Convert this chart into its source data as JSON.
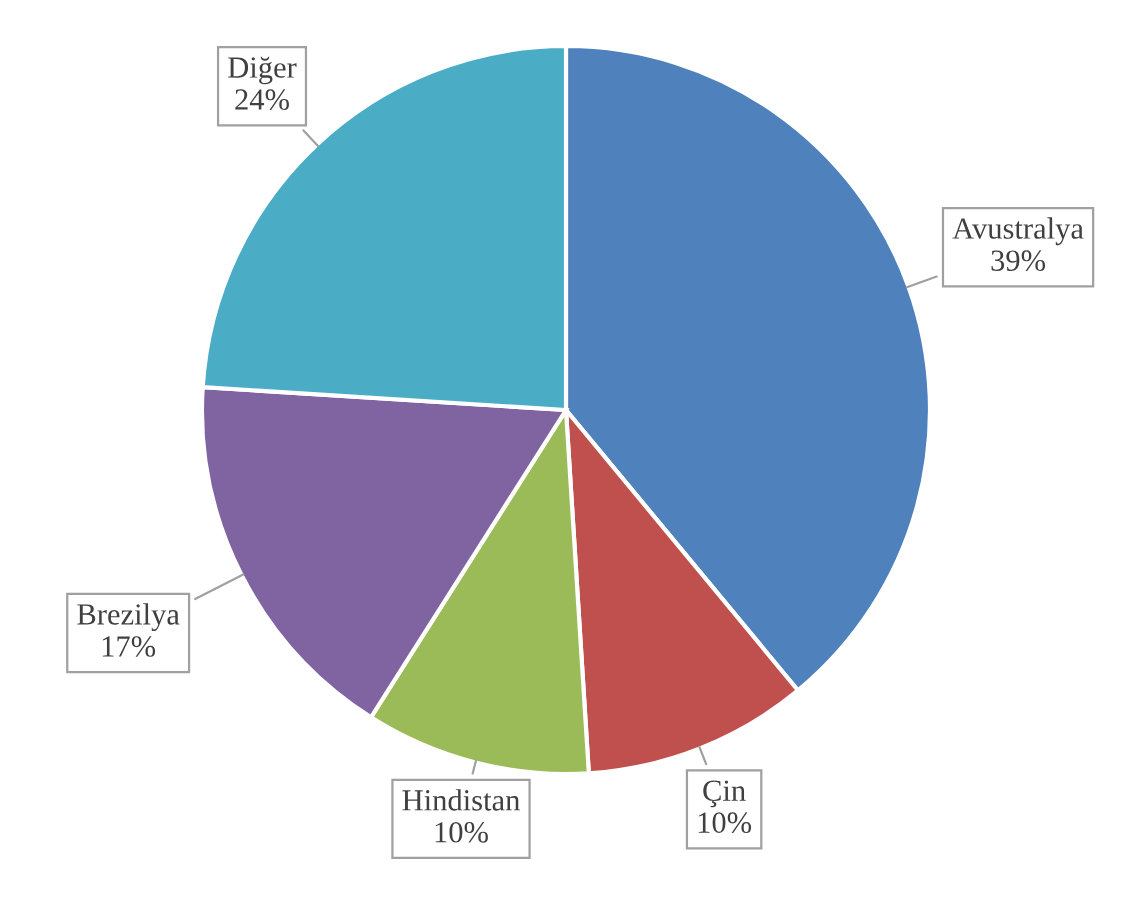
{
  "chart_data": {
    "type": "pie",
    "categories": [
      "Avustralya",
      "Çin",
      "Hindistan",
      "Brezilya",
      "Diğer"
    ],
    "values": [
      39,
      10,
      10,
      17,
      24
    ],
    "value_labels": [
      "39%",
      "10%",
      "10%",
      "17%",
      "24%"
    ],
    "colors": [
      "#4f81bd",
      "#c0504d",
      "#9bbb59",
      "#8064a2",
      "#4bacc6"
    ],
    "legend": false
  }
}
